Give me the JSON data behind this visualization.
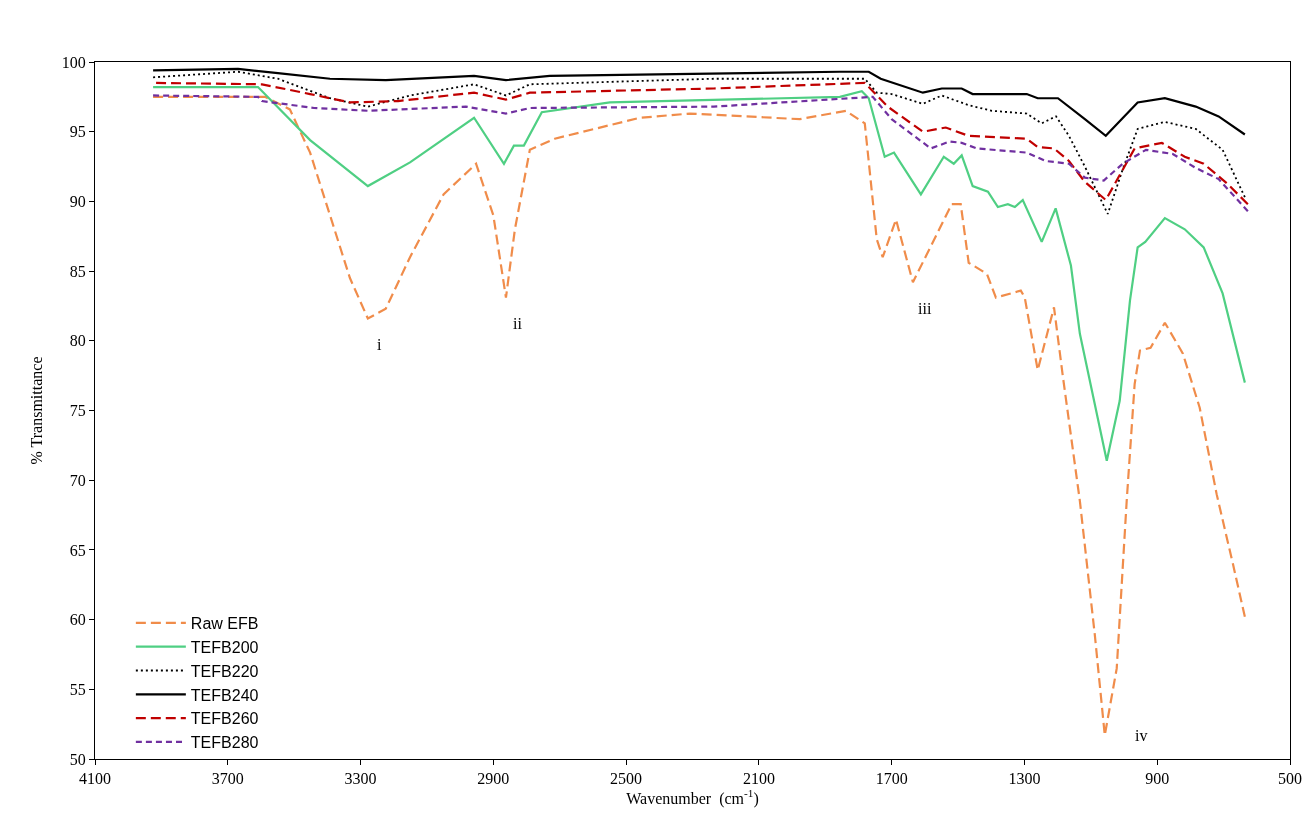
{
  "chart_data": {
    "type": "line",
    "xlabel": "Wavenumber  (cm$^{-1}$)",
    "ylabel": "% Transmittance",
    "xlim": [
      4100,
      500
    ],
    "xticks": [
      4100,
      3700,
      3300,
      2900,
      2500,
      2100,
      1700,
      1300,
      900,
      500
    ],
    "ylim": [
      50,
      100
    ],
    "yticks": [
      50,
      55,
      60,
      65,
      70,
      75,
      80,
      85,
      90,
      95,
      100
    ],
    "legend": "bottom left",
    "marker": "none",
    "annotations": [
      {
        "text": "i",
        "x": 3278,
        "y": 81.6
      },
      {
        "text": "ii",
        "x": 2862,
        "y": 83.1
      },
      {
        "text": "iii",
        "x": 1636,
        "y": 84.2
      },
      {
        "text": "iv",
        "x": 1058,
        "y": 51.7
      }
    ],
    "series": [
      {
        "name": "Raw EFB",
        "color": "#f08c4a",
        "line_style": "dashed",
        "x": [
          3925,
          3588,
          3513,
          3452,
          3392,
          3332,
          3278,
          3224,
          3151,
          3050,
          2952,
          2900,
          2862,
          2835,
          2790,
          2715,
          2458,
          2308,
          1977,
          1838,
          1781,
          1745,
          1727,
          1687,
          1636,
          1519,
          1492,
          1468,
          1413,
          1386,
          1311,
          1299,
          1260,
          1211,
          1184,
          1133,
          1088,
          1058,
          1022,
          992,
          968,
          952,
          920,
          877,
          823,
          772,
          721,
          672,
          636
        ],
        "values": [
          97.5,
          97.5,
          96.6,
          93.5,
          89.0,
          84.5,
          81.6,
          82.3,
          86.0,
          90.5,
          92.7,
          89.0,
          83.1,
          88.0,
          93.7,
          94.5,
          96.0,
          96.3,
          95.9,
          96.5,
          95.6,
          87.3,
          86.0,
          88.7,
          84.2,
          89.8,
          89.8,
          85.6,
          84.8,
          83.1,
          83.6,
          83.1,
          77.9,
          82.4,
          77.4,
          68.5,
          58.9,
          51.7,
          56.5,
          68.5,
          76.9,
          79.3,
          79.5,
          81.3,
          79.1,
          75.2,
          69.0,
          64.0,
          60.2
        ]
      },
      {
        "name": "TEFB200",
        "color": "#4fcf83",
        "line_style": "solid",
        "x": [
          3925,
          3609,
          3452,
          3278,
          3151,
          2958,
          2868,
          2838,
          2808,
          2754,
          2549,
          1856,
          1790,
          1769,
          1721,
          1693,
          1612,
          1543,
          1513,
          1489,
          1456,
          1410,
          1380,
          1350,
          1329,
          1305,
          1248,
          1206,
          1160,
          1133,
          1052,
          1013,
          982,
          959,
          936,
          877,
          817,
          760,
          703,
          636
        ],
        "values": [
          98.2,
          98.2,
          94.4,
          91.1,
          92.8,
          96.0,
          92.7,
          94.0,
          94.0,
          96.4,
          97.1,
          97.5,
          97.9,
          97.4,
          93.2,
          93.5,
          90.5,
          93.2,
          92.7,
          93.3,
          91.1,
          90.7,
          89.6,
          89.8,
          89.6,
          90.1,
          87.1,
          89.5,
          85.4,
          80.5,
          71.4,
          75.7,
          82.9,
          86.7,
          87.1,
          88.8,
          88.0,
          86.7,
          83.4,
          77.0
        ]
      },
      {
        "name": "TEFB220",
        "color": "#000000",
        "line_style": "dotted",
        "x": [
          3925,
          3669,
          3549,
          3392,
          3278,
          3151,
          2958,
          2862,
          2790,
          2236,
          1781,
          1745,
          1700,
          1606,
          1549,
          1468,
          1398,
          1293,
          1248,
          1205,
          1166,
          1118,
          1049,
          1004,
          959,
          877,
          784,
          703,
          636
        ],
        "values": [
          98.9,
          99.3,
          98.8,
          97.4,
          96.8,
          97.6,
          98.4,
          97.6,
          98.4,
          98.8,
          98.8,
          97.8,
          97.7,
          97.0,
          97.6,
          96.9,
          96.5,
          96.3,
          95.6,
          96.1,
          94.7,
          92.5,
          89.1,
          92.3,
          95.2,
          95.7,
          95.2,
          93.7,
          90.3
        ]
      },
      {
        "name": "TEFB240",
        "color": "#000000",
        "line_style": "solid",
        "x": [
          3925,
          3669,
          3549,
          3392,
          3224,
          2958,
          2862,
          2730,
          1856,
          1769,
          1733,
          1606,
          1549,
          1489,
          1456,
          1293,
          1260,
          1199,
          1118,
          1055,
          959,
          877,
          784,
          715,
          636
        ],
        "values": [
          99.4,
          99.5,
          99.2,
          98.8,
          98.7,
          99.0,
          98.7,
          99.0,
          99.3,
          99.3,
          98.8,
          97.8,
          98.1,
          98.1,
          97.7,
          97.7,
          97.4,
          97.4,
          95.9,
          94.7,
          97.1,
          97.4,
          96.8,
          96.1,
          94.8
        ]
      },
      {
        "name": "TEFB260",
        "color": "#c00000",
        "line_style": "dashed",
        "x": [
          3916,
          3597,
          3452,
          3332,
          3187,
          2958,
          2862,
          2790,
          2236,
          1781,
          1712,
          1606,
          1537,
          1468,
          1293,
          1260,
          1211,
          1166,
          1118,
          1055,
          968,
          886,
          817,
          760,
          690,
          627
        ],
        "values": [
          98.5,
          98.4,
          97.7,
          97.1,
          97.2,
          97.8,
          97.3,
          97.8,
          98.1,
          98.5,
          96.8,
          95.0,
          95.3,
          94.7,
          94.5,
          93.9,
          93.8,
          92.9,
          91.4,
          90.1,
          93.8,
          94.2,
          93.2,
          92.7,
          91.3,
          89.8
        ]
      },
      {
        "name": "TEFB280",
        "color": "#7030a0",
        "line_style": "dashed",
        "x": [
          3925,
          3609,
          3597,
          3440,
          3278,
          2983,
          2862,
          2790,
          2236,
          1757,
          1700,
          1582,
          1525,
          1489,
          1443,
          1293,
          1236,
          1166,
          1118,
          1061,
          1004,
          934,
          853,
          784,
          715,
          627
        ],
        "values": [
          97.6,
          97.5,
          97.2,
          96.7,
          96.5,
          96.8,
          96.3,
          96.7,
          96.8,
          97.5,
          95.9,
          93.8,
          94.3,
          94.2,
          93.8,
          93.5,
          92.9,
          92.7,
          91.7,
          91.5,
          92.7,
          93.7,
          93.4,
          92.4,
          91.6,
          89.3
        ]
      }
    ]
  }
}
